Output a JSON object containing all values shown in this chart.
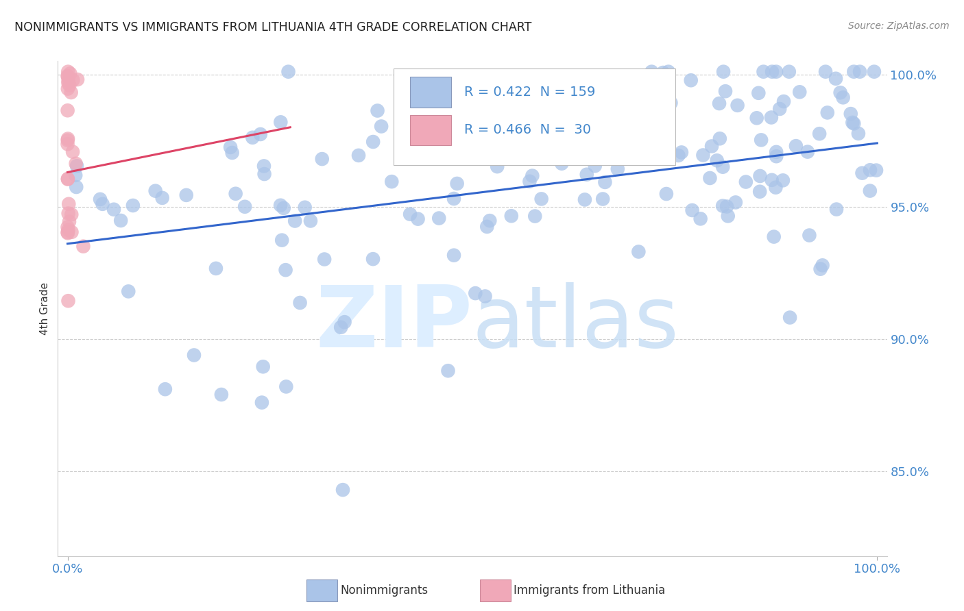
{
  "title": "NONIMMIGRANTS VS IMMIGRANTS FROM LITHUANIA 4TH GRADE CORRELATION CHART",
  "source": "Source: ZipAtlas.com",
  "ylabel": "4th Grade",
  "blue_R": 0.422,
  "blue_N": 159,
  "pink_R": 0.466,
  "pink_N": 30,
  "blue_color": "#aac4e8",
  "pink_color": "#f0a8b8",
  "blue_line_color": "#3366cc",
  "pink_line_color": "#dd4466",
  "background_color": "#ffffff",
  "grid_color": "#cccccc",
  "tick_color": "#4488cc",
  "ylabel_color": "#333333",
  "title_color": "#222222",
  "source_color": "#888888",
  "y_min": 0.818,
  "y_max": 1.005,
  "x_min": -0.012,
  "x_max": 1.012,
  "yticks": [
    0.85,
    0.9,
    0.95,
    1.0
  ],
  "ytick_labels": [
    "85.0%",
    "90.0%",
    "95.0%",
    "100.0%"
  ],
  "xticks": [
    0.0,
    1.0
  ],
  "xtick_labels": [
    "0.0%",
    "100.0%"
  ],
  "blue_trend_x0": 0.0,
  "blue_trend_x1": 1.0,
  "blue_trend_y0": 0.936,
  "blue_trend_y1": 0.974,
  "pink_trend_x0": 0.0,
  "pink_trend_x1": 0.275,
  "pink_trend_y0": 0.963,
  "pink_trend_y1": 0.98,
  "watermark_zip": "ZIP",
  "watermark_atlas": "atlas",
  "legend_blue_label": "R = 0.422  N = 159",
  "legend_pink_label": "R = 0.466  N =  30",
  "bottom_legend_blue": "Nonimmigrants",
  "bottom_legend_pink": "Immigrants from Lithuania"
}
